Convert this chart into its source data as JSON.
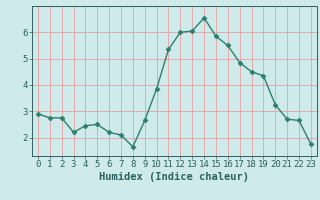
{
  "x": [
    0,
    1,
    2,
    3,
    4,
    5,
    6,
    7,
    8,
    9,
    10,
    11,
    12,
    13,
    14,
    15,
    16,
    17,
    18,
    19,
    20,
    21,
    22,
    23
  ],
  "y": [
    2.9,
    2.75,
    2.75,
    2.2,
    2.45,
    2.5,
    2.2,
    2.1,
    1.65,
    2.65,
    3.85,
    5.35,
    6.0,
    6.05,
    6.55,
    5.85,
    5.5,
    4.85,
    4.5,
    4.35,
    3.25,
    2.7,
    2.65,
    1.75
  ],
  "line_color": "#2d7f6e",
  "marker": "D",
  "marker_size": 2.5,
  "linewidth": 1.0,
  "xlabel": "Humidex (Indice chaleur)",
  "xlim": [
    -0.5,
    23.5
  ],
  "ylim": [
    1.3,
    7.0
  ],
  "yticks": [
    2,
    3,
    4,
    5,
    6
  ],
  "xticks": [
    0,
    1,
    2,
    3,
    4,
    5,
    6,
    7,
    8,
    9,
    10,
    11,
    12,
    13,
    14,
    15,
    16,
    17,
    18,
    19,
    20,
    21,
    22,
    23
  ],
  "bg_color": "#ceeaea",
  "grid_color": "#e8a0a0",
  "tick_color": "#2d6060",
  "label_color": "#2d6060",
  "tick_fontsize": 6.5,
  "label_fontsize": 7.5
}
